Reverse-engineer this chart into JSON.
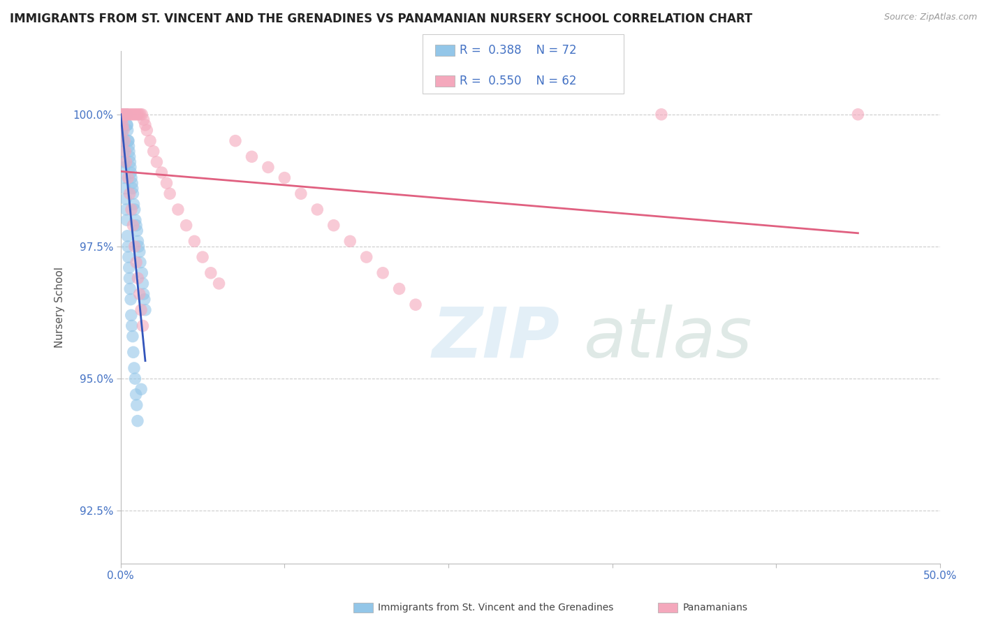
{
  "title": "IMMIGRANTS FROM ST. VINCENT AND THE GRENADINES VS PANAMANIAN NURSERY SCHOOL CORRELATION CHART",
  "source_text": "Source: ZipAtlas.com",
  "ylabel": "Nursery School",
  "xlim": [
    0.0,
    50.0
  ],
  "ylim": [
    91.5,
    101.2
  ],
  "yticks": [
    92.5,
    95.0,
    97.5,
    100.0
  ],
  "xticks": [
    0.0,
    10.0,
    20.0,
    30.0,
    40.0,
    50.0
  ],
  "xtick_labels": [
    "0.0%",
    "",
    "",
    "",
    "",
    "50.0%"
  ],
  "ytick_labels": [
    "92.5%",
    "95.0%",
    "97.5%",
    "100.0%"
  ],
  "blue_color": "#93C6E8",
  "pink_color": "#F4A8BC",
  "blue_line_color": "#3355BB",
  "pink_line_color": "#E06080",
  "legend_label_blue": "Immigrants from St. Vincent and the Grenadines",
  "legend_label_pink": "Panamanians",
  "watermark_zip": "ZIP",
  "watermark_atlas": "atlas",
  "background_color": "#ffffff",
  "blue_scatter_x": [
    0.05,
    0.08,
    0.1,
    0.12,
    0.15,
    0.18,
    0.2,
    0.22,
    0.25,
    0.28,
    0.3,
    0.32,
    0.35,
    0.38,
    0.4,
    0.42,
    0.45,
    0.48,
    0.5,
    0.52,
    0.55,
    0.58,
    0.6,
    0.62,
    0.65,
    0.7,
    0.72,
    0.75,
    0.8,
    0.85,
    0.9,
    0.95,
    1.0,
    1.05,
    1.1,
    1.15,
    1.2,
    1.3,
    1.35,
    1.4,
    1.45,
    1.5,
    0.05,
    0.07,
    0.09,
    0.11,
    0.13,
    0.16,
    0.19,
    0.21,
    0.24,
    0.27,
    0.31,
    0.34,
    0.37,
    0.41,
    0.44,
    0.47,
    0.51,
    0.54,
    0.57,
    0.61,
    0.64,
    0.68,
    0.73,
    0.77,
    0.82,
    0.88,
    0.93,
    0.98,
    1.03,
    1.25
  ],
  "blue_scatter_y": [
    100.0,
    100.0,
    100.0,
    100.0,
    100.0,
    100.0,
    100.0,
    100.0,
    100.0,
    100.0,
    100.0,
    100.0,
    100.0,
    99.8,
    99.8,
    99.7,
    99.5,
    99.5,
    99.4,
    99.3,
    99.2,
    99.1,
    99.0,
    98.9,
    98.8,
    98.7,
    98.6,
    98.5,
    98.3,
    98.2,
    98.0,
    97.9,
    97.8,
    97.6,
    97.5,
    97.4,
    97.2,
    97.0,
    96.8,
    96.6,
    96.5,
    96.3,
    99.9,
    99.8,
    99.7,
    99.6,
    99.5,
    99.3,
    99.1,
    99.0,
    98.8,
    98.6,
    98.4,
    98.2,
    98.0,
    97.7,
    97.5,
    97.3,
    97.1,
    96.9,
    96.7,
    96.5,
    96.2,
    96.0,
    95.8,
    95.5,
    95.2,
    95.0,
    94.7,
    94.5,
    94.2,
    94.8
  ],
  "pink_scatter_x": [
    0.05,
    0.1,
    0.15,
    0.2,
    0.25,
    0.3,
    0.35,
    0.4,
    0.5,
    0.6,
    0.7,
    0.8,
    0.9,
    1.0,
    1.1,
    1.2,
    1.3,
    1.4,
    1.5,
    1.6,
    1.8,
    2.0,
    2.2,
    2.5,
    2.8,
    3.0,
    3.5,
    4.0,
    4.5,
    5.0,
    5.5,
    6.0,
    7.0,
    8.0,
    9.0,
    10.0,
    11.0,
    12.0,
    13.0,
    14.0,
    15.0,
    16.0,
    17.0,
    18.0,
    0.08,
    0.13,
    0.18,
    0.23,
    0.28,
    0.33,
    0.45,
    0.55,
    0.65,
    0.75,
    0.85,
    0.95,
    1.05,
    1.15,
    1.25,
    1.35,
    33.0,
    45.0
  ],
  "pink_scatter_y": [
    100.0,
    100.0,
    100.0,
    100.0,
    100.0,
    100.0,
    100.0,
    100.0,
    100.0,
    100.0,
    100.0,
    100.0,
    100.0,
    100.0,
    100.0,
    100.0,
    100.0,
    99.9,
    99.8,
    99.7,
    99.5,
    99.3,
    99.1,
    98.9,
    98.7,
    98.5,
    98.2,
    97.9,
    97.6,
    97.3,
    97.0,
    96.8,
    99.5,
    99.2,
    99.0,
    98.8,
    98.5,
    98.2,
    97.9,
    97.6,
    97.3,
    97.0,
    96.7,
    96.4,
    99.9,
    99.8,
    99.7,
    99.5,
    99.3,
    99.1,
    98.8,
    98.5,
    98.2,
    97.9,
    97.5,
    97.2,
    96.9,
    96.6,
    96.3,
    96.0,
    100.0,
    100.0
  ]
}
